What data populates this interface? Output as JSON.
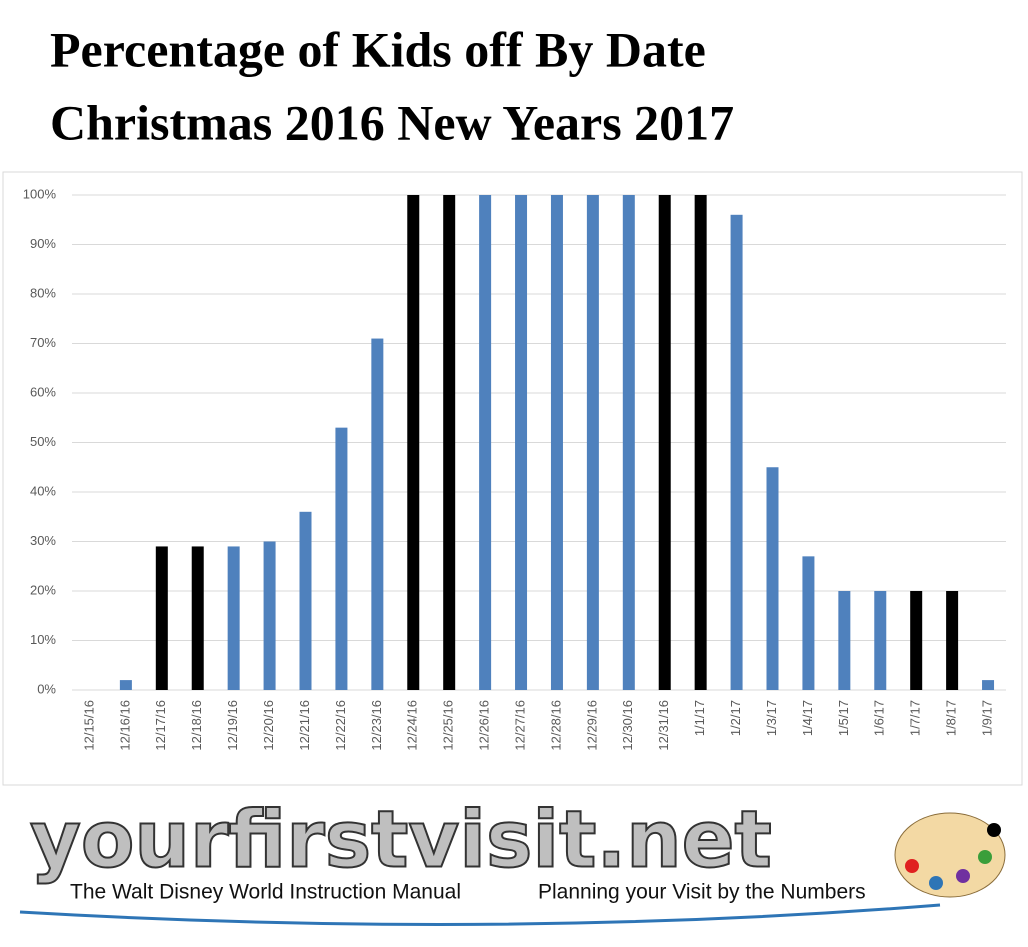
{
  "chart_data": {
    "type": "bar",
    "title": [
      "Percentage of Kids off By Date",
      "Christmas 2016 New Years 2017"
    ],
    "categories": [
      "12/15/16",
      "12/16/16",
      "12/17/16",
      "12/18/16",
      "12/19/16",
      "12/20/16",
      "12/21/16",
      "12/22/16",
      "12/23/16",
      "12/24/16",
      "12/25/16",
      "12/26/16",
      "12/27/16",
      "12/28/16",
      "12/29/16",
      "12/30/16",
      "12/31/16",
      "1/1/17",
      "1/2/17",
      "1/3/17",
      "1/4/17",
      "1/5/17",
      "1/6/17",
      "1/7/17",
      "1/8/17",
      "1/9/17"
    ],
    "values": [
      0,
      2,
      29,
      29,
      29,
      30,
      36,
      53,
      71,
      100,
      100,
      100,
      100,
      100,
      100,
      100,
      100,
      100,
      96,
      45,
      27,
      20,
      20,
      20,
      20,
      2
    ],
    "colors": [
      "#4f81bd",
      "#4f81bd",
      "#000000",
      "#000000",
      "#4f81bd",
      "#4f81bd",
      "#4f81bd",
      "#4f81bd",
      "#4f81bd",
      "#000000",
      "#000000",
      "#4f81bd",
      "#4f81bd",
      "#4f81bd",
      "#4f81bd",
      "#4f81bd",
      "#000000",
      "#000000",
      "#4f81bd",
      "#4f81bd",
      "#4f81bd",
      "#4f81bd",
      "#4f81bd",
      "#000000",
      "#000000",
      "#4f81bd"
    ],
    "ylim": [
      0,
      100
    ],
    "yticks": [
      {
        "value": 0,
        "label": "0%"
      },
      {
        "value": 10,
        "label": "10%"
      },
      {
        "value": 20,
        "label": "20%"
      },
      {
        "value": 30,
        "label": "30%"
      },
      {
        "value": 40,
        "label": "40%"
      },
      {
        "value": 50,
        "label": "50%"
      },
      {
        "value": 60,
        "label": "60%"
      },
      {
        "value": 70,
        "label": "70%"
      },
      {
        "value": 80,
        "label": "80%"
      },
      {
        "value": 90,
        "label": "90%"
      },
      {
        "value": 100,
        "label": "100%"
      }
    ],
    "grid": true
  },
  "logo": {
    "site": "yourfirstvisit.net",
    "left_tagline": "The Walt Disney World Instruction Manual",
    "right_tagline": "Planning your Visit by the Numbers"
  }
}
